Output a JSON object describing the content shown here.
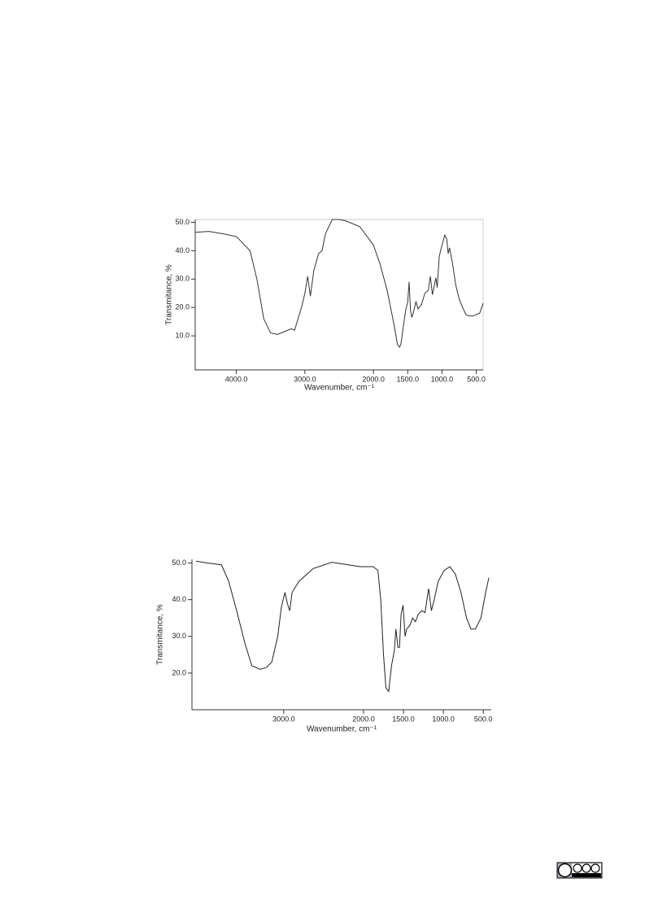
{
  "chart_data": [
    {
      "type": "line",
      "x_label": "Wavenumber, cm⁻¹",
      "y_label": "Transmitance, %",
      "x": [
        4600,
        4400,
        4200,
        4000,
        3800,
        3700,
        3600,
        3500,
        3400,
        3300,
        3200,
        3150,
        3050,
        3000,
        2960,
        2920,
        2870,
        2800,
        2750,
        2700,
        2600,
        2500,
        2400,
        2200,
        2000,
        1900,
        1800,
        1700,
        1650,
        1620,
        1600,
        1560,
        1530,
        1500,
        1480,
        1460,
        1440,
        1420,
        1400,
        1380,
        1350,
        1300,
        1250,
        1200,
        1170,
        1140,
        1110,
        1090,
        1070,
        1040,
        1000,
        960,
        930,
        910,
        890,
        850,
        800,
        750,
        700,
        650,
        600,
        550,
        500,
        450,
        400
      ],
      "series": [
        {
          "color": "#333333",
          "values": [
            46.5,
            46.8,
            46,
            45,
            40,
            30,
            16,
            11,
            10.5,
            11.5,
            12.5,
            12,
            20,
            25,
            31,
            24,
            33,
            39,
            40,
            46,
            51,
            51,
            50.5,
            48.5,
            42,
            35,
            26,
            14,
            7,
            6,
            7,
            14,
            19,
            22,
            29,
            19,
            16.5,
            18,
            20,
            22,
            19.5,
            21,
            25,
            26,
            31,
            24.5,
            28,
            30.5,
            27,
            38,
            42,
            45.5,
            44,
            39,
            41,
            36,
            28,
            23,
            20,
            17.5,
            17,
            17,
            17.5,
            18,
            21.5
          ]
        }
      ],
      "xlim": [
        4600,
        400
      ],
      "xticks": [
        {
          "value": 4000,
          "label": "4000.0"
        },
        {
          "value": 3000,
          "label": "3000.0"
        },
        {
          "value": 2000,
          "label": "2000.0"
        },
        {
          "value": 1500,
          "label": "1500.0"
        },
        {
          "value": 1000,
          "label": "1000.0"
        },
        {
          "value": 500,
          "label": "500.0"
        }
      ],
      "ylim": [
        -2,
        51
      ],
      "yticks": [
        {
          "value": 10,
          "label": "10.0"
        },
        {
          "value": 20,
          "label": "20.0"
        },
        {
          "value": 30,
          "label": "30.0"
        },
        {
          "value": 40,
          "label": "40.0"
        },
        {
          "value": 50,
          "label": "50.0"
        }
      ],
      "grid": false,
      "frame": true
    },
    {
      "type": "line",
      "x_label": "Wavenumber, cm⁻¹",
      "y_label": "Transmitance, %",
      "x": [
        4100,
        3955,
        3780,
        3690,
        3590,
        3485,
        3400,
        3295,
        3220,
        3150,
        3075,
        3030,
        2985,
        2955,
        2925,
        2895,
        2810,
        2630,
        2400,
        2190,
        2045,
        1880,
        1820,
        1785,
        1750,
        1720,
        1685,
        1650,
        1615,
        1595,
        1570,
        1550,
        1530,
        1505,
        1480,
        1460,
        1420,
        1385,
        1350,
        1315,
        1270,
        1230,
        1185,
        1150,
        1115,
        1065,
        990,
        920,
        850,
        780,
        710,
        655,
        600,
        530,
        470,
        430
      ],
      "series": [
        {
          "color": "#222222",
          "values": [
            50.5,
            50,
            49.5,
            45,
            37,
            28,
            22,
            21,
            21.5,
            23,
            30,
            38,
            42,
            39,
            37,
            42,
            45,
            48.5,
            50.2,
            49.5,
            49,
            49,
            48,
            40,
            25,
            16,
            15,
            22,
            26,
            32,
            27,
            27,
            36,
            38.5,
            30,
            32,
            33,
            35,
            34,
            36,
            37,
            36.5,
            43,
            37,
            40,
            45,
            48,
            49,
            47,
            42,
            35,
            32,
            32,
            35,
            42,
            46
          ]
        }
      ],
      "xlim": [
        4150,
        400
      ],
      "xticks": [
        {
          "value": 3000,
          "label": "3000.0"
        },
        {
          "value": 2000,
          "label": "2000.0"
        },
        {
          "value": 1500,
          "label": "1500.0"
        },
        {
          "value": 1000,
          "label": "1000.0"
        },
        {
          "value": 500,
          "label": "500.0"
        }
      ],
      "ylim": [
        10,
        51
      ],
      "yticks": [
        {
          "value": 20,
          "label": "20.0"
        },
        {
          "value": 30,
          "label": "30.0"
        },
        {
          "value": 40,
          "label": "40.0"
        },
        {
          "value": 50,
          "label": "50.0"
        }
      ],
      "grid": false,
      "frame": false
    }
  ]
}
